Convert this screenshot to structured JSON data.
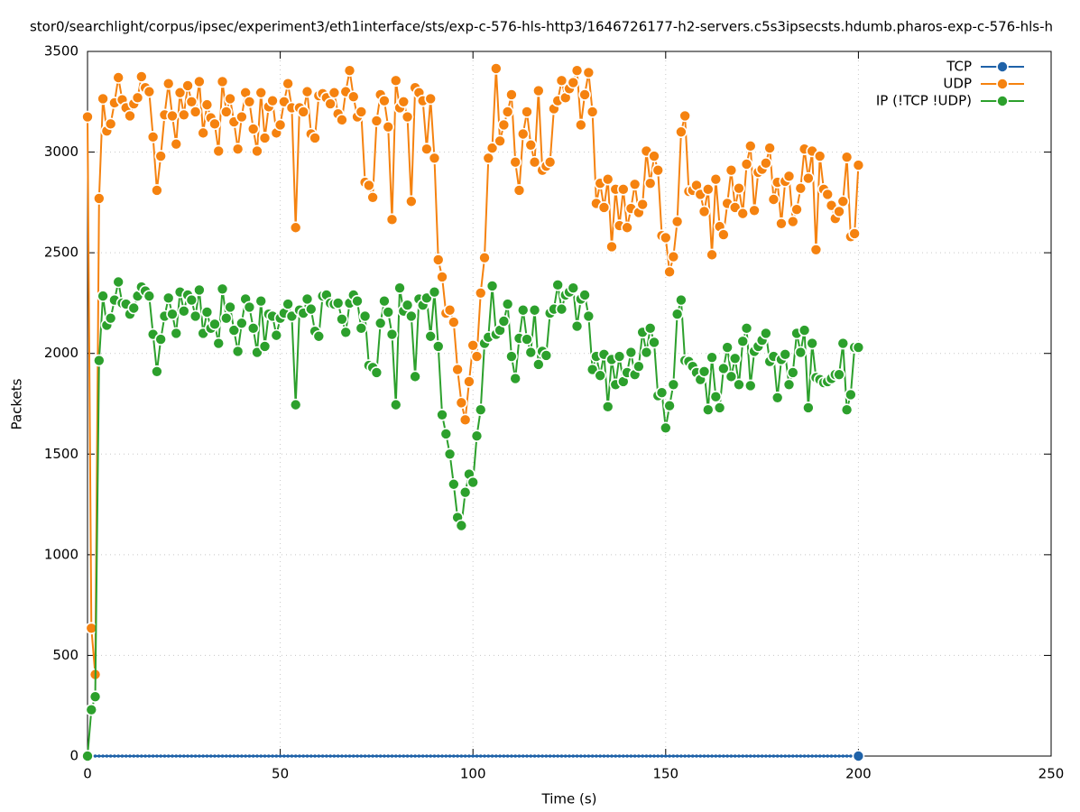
{
  "chart_data": {
    "type": "line",
    "title": "stor0/searchlight/corpus/ipsec/experiment3/eth1interface/sts/exp-c-576-hls-http3/1646726177-h2-servers.c5s3ipsecsts.hdumb.pharos-exp-c-576-hls-h",
    "x_label": "Time (s)",
    "y_label": "Packets",
    "xlim": [
      0,
      250
    ],
    "xticks": [
      0,
      50,
      100,
      150,
      200,
      250
    ],
    "ylim": [
      0,
      3500
    ],
    "yticks": [
      0,
      500,
      1000,
      1500,
      2000,
      2500,
      3000,
      3500
    ],
    "grid": true,
    "legend": "top-right",
    "x": [
      0,
      1,
      2,
      3,
      4,
      5,
      6,
      7,
      8,
      9,
      10,
      11,
      12,
      13,
      14,
      15,
      16,
      17,
      18,
      19,
      20,
      21,
      22,
      23,
      24,
      25,
      26,
      27,
      28,
      29,
      30,
      31,
      32,
      33,
      34,
      35,
      36,
      37,
      38,
      39,
      40,
      41,
      42,
      43,
      44,
      45,
      46,
      47,
      48,
      49,
      50,
      51,
      52,
      53,
      54,
      55,
      56,
      57,
      58,
      59,
      60,
      61,
      62,
      63,
      64,
      65,
      66,
      67,
      68,
      69,
      70,
      71,
      72,
      73,
      74,
      75,
      76,
      77,
      78,
      79,
      80,
      81,
      82,
      83,
      84,
      85,
      86,
      87,
      88,
      89,
      90,
      91,
      92,
      93,
      94,
      95,
      96,
      97,
      98,
      99,
      100,
      101,
      102,
      103,
      104,
      105,
      106,
      107,
      108,
      109,
      110,
      111,
      112,
      113,
      114,
      115,
      116,
      117,
      118,
      119,
      120,
      121,
      122,
      123,
      124,
      125,
      126,
      127,
      128,
      129,
      130,
      131,
      132,
      133,
      134,
      135,
      136,
      137,
      138,
      139,
      140,
      141,
      142,
      143,
      144,
      145,
      146,
      147,
      148,
      149,
      150,
      151,
      152,
      153,
      154,
      155,
      156,
      157,
      158,
      159,
      160,
      161,
      162,
      163,
      164,
      165,
      166,
      167,
      168,
      169,
      170,
      171,
      172,
      173,
      174,
      175,
      176,
      177,
      178,
      179,
      180,
      181,
      182,
      183,
      184,
      185,
      186,
      187,
      188,
      189,
      190,
      191,
      192,
      193,
      194,
      195,
      196,
      197,
      198,
      199,
      200
    ],
    "series": [
      {
        "name": "TCP",
        "color": "#1f62a8",
        "values": [
          0,
          0,
          0,
          0,
          0,
          0,
          0,
          0,
          0,
          0,
          0,
          0,
          0,
          0,
          0,
          0,
          0,
          0,
          0,
          0,
          0,
          0,
          0,
          0,
          0,
          0,
          0,
          0,
          0,
          0,
          0,
          0,
          0,
          0,
          0,
          0,
          0,
          0,
          0,
          0,
          0,
          0,
          0,
          0,
          0,
          0,
          0,
          0,
          0,
          0,
          0,
          0,
          0,
          0,
          0,
          0,
          0,
          0,
          0,
          0,
          0,
          0,
          0,
          0,
          0,
          0,
          0,
          0,
          0,
          0,
          0,
          0,
          0,
          0,
          0,
          0,
          0,
          0,
          0,
          0,
          0,
          0,
          0,
          0,
          0,
          0,
          0,
          0,
          0,
          0,
          0,
          0,
          0,
          0,
          0,
          0,
          0,
          0,
          0,
          0,
          0,
          0,
          0,
          0,
          0,
          0,
          0,
          0,
          0,
          0,
          0,
          0,
          0,
          0,
          0,
          0,
          0,
          0,
          0,
          0,
          0,
          0,
          0,
          0,
          0,
          0,
          0,
          0,
          0,
          0,
          0,
          0,
          0,
          0,
          0,
          0,
          0,
          0,
          0,
          0,
          0,
          0,
          0,
          0,
          0,
          0,
          0,
          0,
          0,
          0,
          0,
          0,
          0,
          0,
          0,
          0,
          0,
          0,
          0,
          0,
          0,
          0,
          0,
          0,
          0,
          0,
          0,
          0,
          0,
          0,
          0,
          0,
          0,
          0,
          0,
          0,
          0,
          0,
          0,
          0,
          0,
          0,
          0,
          0,
          0,
          0,
          0,
          0,
          0,
          0,
          0,
          0,
          0,
          0,
          0,
          0,
          0,
          0,
          0,
          0,
          0
        ]
      },
      {
        "name": "UDP",
        "color": "#f5820f",
        "values": [
          3175,
          635,
          405,
          2770,
          3265,
          3105,
          3140,
          3245,
          3370,
          3260,
          3220,
          3180,
          3240,
          3270,
          3375,
          3320,
          3300,
          3075,
          2810,
          2980,
          3185,
          3340,
          3180,
          3040,
          3295,
          3185,
          3330,
          3250,
          3200,
          3350,
          3095,
          3235,
          3170,
          3140,
          3005,
          3350,
          3200,
          3265,
          3150,
          3015,
          3175,
          3295,
          3250,
          3115,
          3005,
          3295,
          3070,
          3225,
          3255,
          3095,
          3135,
          3250,
          3340,
          3220,
          2625,
          3220,
          3200,
          3300,
          3090,
          3070,
          3280,
          3290,
          3270,
          3240,
          3295,
          3190,
          3160,
          3300,
          3405,
          3275,
          3175,
          3200,
          2850,
          2835,
          2775,
          3155,
          3285,
          3255,
          3125,
          2665,
          3355,
          3220,
          3250,
          3175,
          2755,
          3320,
          3295,
          3255,
          3015,
          3265,
          2970,
          2465,
          2380,
          2200,
          2215,
          2155,
          1920,
          1755,
          1670,
          1860,
          2040,
          1985,
          2300,
          2475,
          2970,
          3020,
          3415,
          3055,
          3135,
          3200,
          3285,
          2950,
          2810,
          3090,
          3200,
          3035,
          2950,
          3305,
          2910,
          2930,
          2950,
          3215,
          3255,
          3355,
          3270,
          3315,
          3345,
          3405,
          3135,
          3285,
          3395,
          3200,
          2745,
          2845,
          2725,
          2865,
          2530,
          2815,
          2635,
          2815,
          2625,
          2720,
          2840,
          2700,
          2740,
          3005,
          2845,
          2980,
          2910,
          2585,
          2575,
          2405,
          2480,
          2655,
          3100,
          3180,
          2805,
          2810,
          2835,
          2790,
          2705,
          2815,
          2490,
          2865,
          2630,
          2590,
          2745,
          2910,
          2725,
          2820,
          2695,
          2940,
          3030,
          2710,
          2900,
          2915,
          2945,
          3020,
          2765,
          2850,
          2645,
          2855,
          2880,
          2655,
          2715,
          2820,
          3015,
          2870,
          3005,
          2515,
          2980,
          2815,
          2790,
          2735,
          2670,
          2705,
          2755,
          2975,
          2580,
          2595,
          2935
        ]
      },
      {
        "name": "IP (!TCP  !UDP)",
        "color": "#2ca02c",
        "values": [
          0,
          230,
          295,
          1965,
          2285,
          2140,
          2175,
          2265,
          2355,
          2250,
          2245,
          2195,
          2225,
          2285,
          2330,
          2310,
          2285,
          2095,
          1910,
          2070,
          2185,
          2275,
          2195,
          2100,
          2305,
          2210,
          2290,
          2265,
          2185,
          2315,
          2100,
          2205,
          2125,
          2145,
          2050,
          2320,
          2175,
          2230,
          2115,
          2010,
          2150,
          2270,
          2230,
          2125,
          2005,
          2260,
          2035,
          2195,
          2185,
          2090,
          2175,
          2200,
          2245,
          2185,
          1745,
          2215,
          2200,
          2270,
          2220,
          2110,
          2085,
          2285,
          2290,
          2250,
          2245,
          2250,
          2170,
          2105,
          2250,
          2290,
          2260,
          2125,
          2185,
          1940,
          1930,
          1905,
          2150,
          2260,
          2205,
          2095,
          1745,
          2325,
          2210,
          2240,
          2185,
          1885,
          2270,
          2240,
          2275,
          2085,
          2305,
          2035,
          1695,
          1600,
          1500,
          1350,
          1185,
          1145,
          1310,
          1400,
          1360,
          1590,
          1720,
          2050,
          2080,
          2335,
          2095,
          2115,
          2160,
          2245,
          1985,
          1875,
          2075,
          2215,
          2070,
          2005,
          2215,
          1945,
          2010,
          1990,
          2200,
          2220,
          2340,
          2220,
          2290,
          2305,
          2325,
          2135,
          2270,
          2290,
          2185,
          1920,
          1985,
          1890,
          1995,
          1735,
          1970,
          1845,
          1985,
          1860,
          1905,
          2005,
          1895,
          1935,
          2105,
          2005,
          2125,
          2055,
          1790,
          1805,
          1630,
          1740,
          1845,
          2195,
          2265,
          1965,
          1960,
          1935,
          1905,
          1870,
          1910,
          1720,
          1980,
          1785,
          1730,
          1925,
          2030,
          1885,
          1975,
          1845,
          2060,
          2125,
          1840,
          2010,
          2035,
          2065,
          2100,
          1960,
          1985,
          1780,
          1970,
          1995,
          1845,
          1905,
          2100,
          2005,
          2115,
          1730,
          2050,
          1880,
          1870,
          1855,
          1860,
          1875,
          1895,
          1895,
          2050,
          1720,
          1795,
          2030,
          2030
        ]
      }
    ]
  }
}
